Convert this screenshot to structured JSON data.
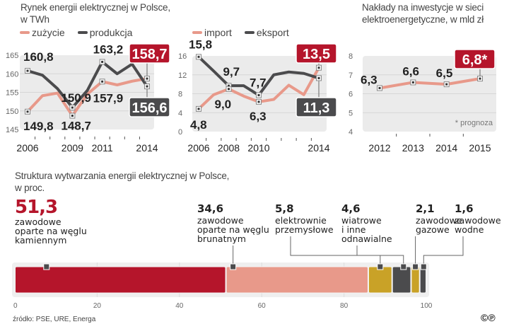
{
  "colors": {
    "red": "#b5152b",
    "salmon": "#e8998a",
    "dark": "#4b4b4d",
    "gold": "#c9a227",
    "panel": "#ebebeb",
    "grid": "#d6d6d6"
  },
  "chart_data": [
    {
      "type": "line",
      "title": "Rynek energii elektrycznej w Polsce, w TWh",
      "title_lines": [
        "Rynek energii elektrycznej w Polsce,",
        "w TWh"
      ],
      "x": [
        2006,
        2007,
        2008,
        2009,
        2010,
        2011,
        2012,
        2013,
        2014
      ],
      "xtick_labels": [
        "2006",
        "2009",
        "2011",
        "2014"
      ],
      "xtick_values": [
        2006,
        2009,
        2011,
        2014
      ],
      "ylim": [
        145,
        165
      ],
      "yticks": [
        145,
        150,
        155,
        160,
        165
      ],
      "grid": true,
      "legend": "top-left",
      "series": [
        {
          "name": "zużycie",
          "color": "salmon",
          "values": [
            149.8,
            154.1,
            154.8,
            148.7,
            154.5,
            157.9,
            157.0,
            158.0,
            158.7
          ]
        },
        {
          "name": "produkcja",
          "color": "dark",
          "values": [
            160.8,
            159.6,
            156.0,
            150.9,
            155.5,
            163.2,
            160.0,
            162.6,
            156.6
          ]
        }
      ],
      "annotations": [
        {
          "text": "160,8",
          "series": 1,
          "x": 2006
        },
        {
          "text": "149,8",
          "series": 0,
          "x": 2006
        },
        {
          "text": "150,9",
          "series": 1,
          "x": 2009
        },
        {
          "text": "148,7",
          "series": 0,
          "x": 2009
        },
        {
          "text": "163,2",
          "series": 1,
          "x": 2011
        },
        {
          "text": "157,9",
          "series": 0,
          "x": 2011
        },
        {
          "text": "158,7",
          "series": 0,
          "x": 2014,
          "boxed": "red"
        },
        {
          "text": "156,6",
          "series": 1,
          "x": 2014,
          "boxed": "dark"
        }
      ]
    },
    {
      "type": "line",
      "title": "",
      "x": [
        2006,
        2007,
        2008,
        2009,
        2010,
        2011,
        2012,
        2013,
        2014
      ],
      "xtick_labels": [
        "2006",
        "2008",
        "2010",
        "2014"
      ],
      "xtick_values": [
        2006,
        2008,
        2010,
        2014
      ],
      "ylim": [
        0,
        16
      ],
      "yticks": [
        0,
        4,
        8,
        12,
        16
      ],
      "grid": true,
      "legend": "top-left",
      "series": [
        {
          "name": "import",
          "color": "salmon",
          "values": [
            4.8,
            7.8,
            9.0,
            7.5,
            6.3,
            6.8,
            9.8,
            7.8,
            13.5
          ]
        },
        {
          "name": "eksport",
          "color": "dark",
          "values": [
            15.8,
            12.8,
            9.7,
            9.7,
            7.7,
            12.0,
            12.6,
            12.3,
            11.3
          ]
        }
      ],
      "annotations": [
        {
          "text": "15,8",
          "series": 1,
          "x": 2006
        },
        {
          "text": "4,8",
          "series": 0,
          "x": 2006
        },
        {
          "text": "9,7",
          "series": 1,
          "x": 2008
        },
        {
          "text": "9,0",
          "series": 0,
          "x": 2008
        },
        {
          "text": "7,7",
          "series": 1,
          "x": 2010
        },
        {
          "text": "6,3",
          "series": 0,
          "x": 2010
        },
        {
          "text": "13,5",
          "series": 0,
          "x": 2014,
          "boxed": "red"
        },
        {
          "text": "11,3",
          "series": 1,
          "x": 2014,
          "boxed": "dark"
        }
      ]
    },
    {
      "type": "line",
      "title": "Nakłady na inwestycje w sieci elektroenergetyczne, w mld zł",
      "title_lines": [
        "Nakłady na inwestycje w sieci",
        "elektroenergetyczne, w mld zł"
      ],
      "x": [
        2012,
        2013,
        2014,
        2015
      ],
      "xtick_labels": [
        "2012",
        "2013",
        "2014",
        "2015"
      ],
      "xtick_values": [
        2012,
        2013,
        2014,
        2015
      ],
      "ylim": [
        4,
        8
      ],
      "yticks": [
        4,
        5,
        6,
        7,
        8
      ],
      "grid": true,
      "series": [
        {
          "name": "nakłady",
          "color": "salmon",
          "values": [
            6.3,
            6.6,
            6.5,
            6.8
          ]
        }
      ],
      "annotations": [
        {
          "text": "6,3",
          "series": 0,
          "x": 2012
        },
        {
          "text": "6,6",
          "series": 0,
          "x": 2013
        },
        {
          "text": "6,5",
          "series": 0,
          "x": 2014
        },
        {
          "text": "6,8*",
          "series": 0,
          "x": 2015,
          "boxed": "red"
        }
      ],
      "footnote": "* prognoza"
    },
    {
      "type": "bar",
      "orientation": "horizontal-stacked",
      "title": "Struktura wytwarzania energii elektrycznej w Polsce, w proc.",
      "title_lines": [
        "Struktura wytwarzania energii elektrycznej w Polsce,",
        "w proc."
      ],
      "xlim": [
        0,
        100
      ],
      "xticks": [
        0,
        20,
        40,
        60,
        80,
        100
      ],
      "segments": [
        {
          "value": 51.3,
          "label_value": "51,3",
          "label": [
            "zawodowe",
            "oparte na węglu",
            "kamiennym"
          ],
          "color": "red"
        },
        {
          "value": 34.6,
          "label_value": "34,6",
          "label": [
            "zawodowe",
            "oparte na węglu",
            "brunatnym"
          ],
          "color": "salmon"
        },
        {
          "value": 5.8,
          "label_value": "5,8",
          "label": [
            "elektrownie",
            "przemysłowe"
          ],
          "color": "gold"
        },
        {
          "value": 4.6,
          "label_value": "4,6",
          "label": [
            "wiatrowe",
            "i inne",
            "odnawialne"
          ],
          "color": "dark"
        },
        {
          "value": 2.1,
          "label_value": "2,1",
          "label": [
            "zawodowe",
            "gazowe"
          ],
          "color": "gold"
        },
        {
          "value": 1.6,
          "label_value": "1,6",
          "label": [
            "zawodowe",
            "wodne"
          ],
          "color": "dark"
        }
      ]
    }
  ],
  "source": "źródło: PSE, URE, Energa",
  "logo": "©℗"
}
